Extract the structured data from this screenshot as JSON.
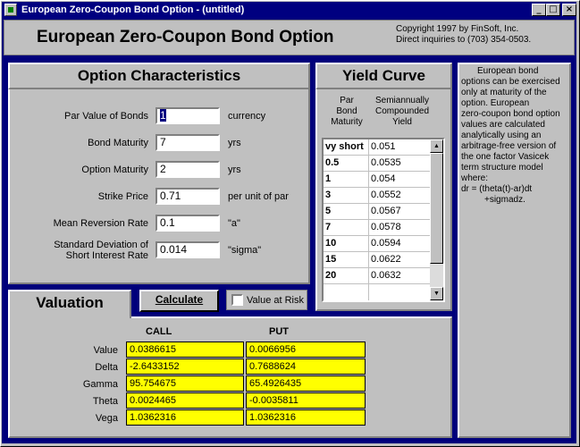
{
  "window": {
    "title": "European Zero-Coupon Bond Option - (untitled)",
    "min_glyph": "_",
    "max_glyph": "□",
    "close_glyph": "×"
  },
  "header": {
    "title": "European Zero-Coupon Bond Option",
    "copyright_line1": "Copyright 1997 by FinSoft, Inc.",
    "copyright_line2": "Direct inquiries to (703) 354-0503."
  },
  "option": {
    "title": "Option Characteristics",
    "fields": [
      {
        "label": "Par Value of Bonds",
        "value": "1",
        "unit": "currency"
      },
      {
        "label": "Bond Maturity",
        "value": "7",
        "unit": "yrs"
      },
      {
        "label": "Option Maturity",
        "value": "2",
        "unit": "yrs"
      },
      {
        "label": "Strike Price",
        "value": "0.71",
        "unit": "per unit of par"
      },
      {
        "label": "Mean Reversion Rate",
        "value": "0.1",
        "unit": "\"a\""
      },
      {
        "label_line1": "Standard Deviation of",
        "label_line2": "Short Interest Rate",
        "value": "0.014",
        "unit": "\"sigma\""
      }
    ]
  },
  "yield_curve": {
    "title": "Yield Curve",
    "col1_line1": "Par",
    "col1_line2": "Bond",
    "col1_line3": "Maturity",
    "col2_line1": "Semiannually",
    "col2_line2": "Compounded",
    "col2_line3": "Yield",
    "rows": [
      {
        "maturity": "vy short",
        "yield": "0.051"
      },
      {
        "maturity": "0.5",
        "yield": "0.0535"
      },
      {
        "maturity": "1",
        "yield": "0.054"
      },
      {
        "maturity": "3",
        "yield": "0.0552"
      },
      {
        "maturity": "5",
        "yield": "0.0567"
      },
      {
        "maturity": "7",
        "yield": "0.0578"
      },
      {
        "maturity": "10",
        "yield": "0.0594"
      },
      {
        "maturity": "15",
        "yield": "0.0622"
      },
      {
        "maturity": "20",
        "yield": "0.0632"
      }
    ],
    "scroll_up_glyph": "▲",
    "scroll_down_glyph": "▼"
  },
  "note": {
    "line1": "European bond",
    "line2": "options can be exercised",
    "line3": "only at maturity of the",
    "line4": "option.  European",
    "line5": "zero-coupon bond option",
    "line6": "values are calculated",
    "line7": "analytically using an",
    "line8": "arbitrage-free version of",
    "line9": "the one factor Vasicek",
    "line10": "term structure model",
    "line11": "where:",
    "line12": "dr = (theta(t)-ar)dt",
    "line13": "+sigmadz."
  },
  "valuation": {
    "title": "Valuation",
    "calculate_label": "Calculate",
    "var_label": "Value at Risk",
    "call_header": "CALL",
    "put_header": "PUT",
    "rows": [
      {
        "label": "Value",
        "call": "0.0386615",
        "put": "0.0066956"
      },
      {
        "label": "Delta",
        "call": "-2.6433152",
        "put": "0.7688624"
      },
      {
        "label": "Gamma",
        "call": "95.754675",
        "put": "65.4926435"
      },
      {
        "label": "Theta",
        "call": "0.0024465",
        "put": "-0.0035811"
      },
      {
        "label": "Vega",
        "call": "1.0362316",
        "put": "1.0362316"
      }
    ]
  },
  "colors": {
    "title_bar": "#000080",
    "window_bg": "#c0c0c0",
    "client_bg": "#00007b",
    "result_cell": "#ffff00"
  }
}
